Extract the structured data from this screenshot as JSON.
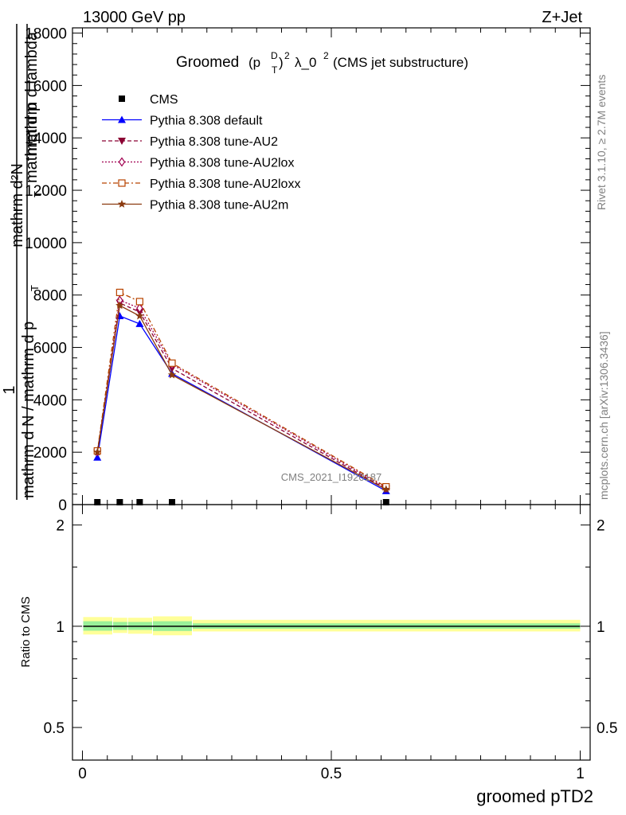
{
  "header": {
    "left": "13000 GeV pp",
    "right": "Z+Jet"
  },
  "plot": {
    "title_main": "Groomed",
    "title_paren_open": "(p",
    "title_sup_d": "D",
    "title_sub_t": "T",
    "title_paren_close": ")",
    "title_exp": "2",
    "title_lambda": "λ_0",
    "title_lambda_exp": "2",
    "title_tail": "(CMS jet substructure)",
    "watermark": "CMS_2021_I1920187",
    "side_label_top": "Rivet 3.1.10, ≥ 2.7M events",
    "side_label_bottom": "mcplots.cern.ch [arXiv:1306.3436]",
    "ylabel_fraction_one": "1",
    "ylabel_line1": "mathrm d²N",
    "ylabel_line2": "mathrm d p",
    "ylabel_line2_sub": "T",
    "ylabel_line2_tail": " mathrm d lambda",
    "ylabel_line3": "mathrm d N / mathrm d p",
    "ylabel_line3_sub": "T",
    "ratio_ylabel": "Ratio to CMS",
    "xlabel": "groomed pTD2"
  },
  "legend": [
    {
      "label": "CMS",
      "color": "#000000",
      "marker": "square-filled",
      "dash": "none"
    },
    {
      "label": "Pythia 8.308 default",
      "color": "#0000ff",
      "marker": "triangle-up",
      "dash": "solid"
    },
    {
      "label": "Pythia 8.308 tune-AU2",
      "color": "#8b0033",
      "marker": "triangle-down",
      "dash": "dashed"
    },
    {
      "label": "Pythia 8.308 tune-AU2lox",
      "color": "#a00050",
      "marker": "diamond-open",
      "dash": "dotted"
    },
    {
      "label": "Pythia 8.308 tune-AU2loxx",
      "color": "#b84400",
      "marker": "square-open",
      "dash": "dashdot"
    },
    {
      "label": "Pythia 8.308 tune-AU2m",
      "color": "#8b3a0f",
      "marker": "star",
      "dash": "solid"
    }
  ],
  "chart_data": {
    "type": "line",
    "main_panel": {
      "xlim": [
        -0.02,
        1.02
      ],
      "ylim": [
        0,
        18200
      ],
      "y_ticks": [
        0,
        2000,
        4000,
        6000,
        8000,
        10000,
        12000,
        14000,
        16000,
        18000
      ],
      "y_tick_labels": [
        "0",
        "2000",
        "4000",
        "6000",
        "8000",
        "10000",
        "12000",
        "14000",
        "16000",
        "18000"
      ],
      "x": [
        0.03,
        0.075,
        0.115,
        0.18,
        0.61
      ],
      "series": [
        {
          "name": "CMS",
          "values": [
            30,
            30,
            30,
            30,
            30
          ]
        },
        {
          "name": "Pythia 8.308 default",
          "values": [
            1800,
            7200,
            6900,
            5000,
            520
          ]
        },
        {
          "name": "Pythia 8.308 tune-AU2",
          "values": [
            2000,
            7700,
            7350,
            5200,
            600
          ]
        },
        {
          "name": "Pythia 8.308 tune-AU2lox",
          "values": [
            2020,
            7800,
            7500,
            5350,
            640
          ]
        },
        {
          "name": "Pythia 8.308 tune-AU2loxx",
          "values": [
            2050,
            8100,
            7750,
            5400,
            680
          ]
        },
        {
          "name": "Pythia 8.308 tune-AU2m",
          "values": [
            2000,
            7600,
            7200,
            4950,
            580
          ]
        }
      ]
    },
    "ratio_panel": {
      "ylim": [
        0.4,
        2.3
      ],
      "y_ticks": [
        0.5,
        1,
        2
      ],
      "y_tick_labels": [
        "0.5",
        "1",
        "2"
      ],
      "x_ticks": [
        0,
        0.5,
        1
      ],
      "x_tick_labels": [
        "0",
        "0.5",
        "1"
      ],
      "bands": [
        {
          "x0": 0.0,
          "x1": 0.06,
          "yellow": [
            0.945,
            1.065
          ],
          "green": [
            0.97,
            1.035
          ]
        },
        {
          "x0": 0.06,
          "x1": 0.09,
          "yellow": [
            0.955,
            1.06
          ],
          "green": [
            0.975,
            1.03
          ]
        },
        {
          "x0": 0.09,
          "x1": 0.14,
          "yellow": [
            0.95,
            1.06
          ],
          "green": [
            0.975,
            1.03
          ]
        },
        {
          "x0": 0.14,
          "x1": 0.22,
          "yellow": [
            0.94,
            1.07
          ],
          "green": [
            0.968,
            1.035
          ]
        },
        {
          "x0": 0.22,
          "x1": 1.0,
          "yellow": [
            0.965,
            1.045
          ],
          "green": [
            0.983,
            1.02
          ]
        }
      ],
      "reference_line": 1
    }
  }
}
